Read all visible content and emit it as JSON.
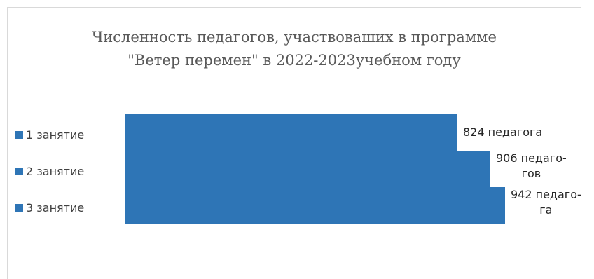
{
  "chart_data": {
    "type": "bar",
    "orientation": "horizontal",
    "title_lines": [
      "Численность педагогов, участвоваших  в программе",
      "\"Ветер перемен\" в 2022-2023учебном году"
    ],
    "categories": [
      "1 занятие",
      "2 занятие",
      "3 занятие"
    ],
    "values": [
      824,
      906,
      942
    ],
    "data_labels": [
      [
        "824 педагога"
      ],
      [
        "906 педаго-",
        "гов"
      ],
      [
        "942 педаго-",
        "га"
      ]
    ],
    "color": "#2E75B6",
    "legend_position": "left"
  }
}
